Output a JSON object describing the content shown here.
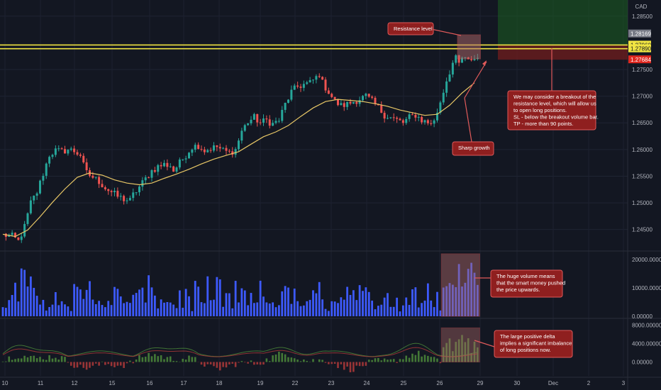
{
  "chart_data": {
    "type": "candlestick",
    "symbol": "CAD",
    "x_tick_labels": [
      "10",
      "11",
      "12",
      "15",
      "16",
      "17",
      "18",
      "19",
      "22",
      "23",
      "24",
      "25",
      "26",
      "29",
      "30",
      "Dec",
      "2",
      "3"
    ],
    "price_axis": {
      "ticks": [
        "1.28500",
        "1.27500",
        "1.27000",
        "1.26500",
        "1.26000",
        "1.25500",
        "1.25000",
        "1.24500"
      ],
      "ylim": [
        1.2415,
        1.2875
      ],
      "price_labels": [
        {
          "text": "1.28169",
          "value": 1.28169,
          "color": "#787b86"
        },
        {
          "text": "1.27960",
          "value": 1.2796,
          "color": "#f0e442"
        },
        {
          "text": "1.27890",
          "value": 1.2789,
          "color": "#f0e442"
        },
        {
          "text": "1.27684",
          "value": 1.27684,
          "color": "#e0271f"
        }
      ]
    },
    "resistance_levels": [
      1.2796,
      1.2789
    ],
    "close_path": [
      [
        0,
        1.244
      ],
      [
        3,
        1.2437
      ],
      [
        5,
        1.2428
      ],
      [
        7,
        1.2455
      ],
      [
        9,
        1.25
      ],
      [
        11,
        1.252
      ],
      [
        13,
        1.2555
      ],
      [
        15,
        1.259
      ],
      [
        17,
        1.2598
      ],
      [
        19,
        1.2596
      ],
      [
        21,
        1.26
      ],
      [
        23,
        1.2597
      ],
      [
        25,
        1.259
      ],
      [
        26,
        1.257
      ],
      [
        27,
        1.2556
      ],
      [
        29,
        1.2548
      ],
      [
        31,
        1.254
      ],
      [
        33,
        1.2528
      ],
      [
        35,
        1.252
      ],
      [
        37,
        1.2512
      ],
      [
        39,
        1.2507
      ],
      [
        41,
        1.2504
      ],
      [
        42,
        1.2515
      ],
      [
        44,
        1.253
      ],
      [
        46,
        1.2545
      ],
      [
        48,
        1.256
      ],
      [
        50,
        1.2568
      ],
      [
        52,
        1.2572
      ],
      [
        54,
        1.257
      ],
      [
        55,
        1.256
      ],
      [
        57,
        1.2575
      ],
      [
        59,
        1.259
      ],
      [
        61,
        1.2605
      ],
      [
        63,
        1.2608
      ],
      [
        65,
        1.2598
      ],
      [
        67,
        1.2602
      ],
      [
        69,
        1.2605
      ],
      [
        71,
        1.2598
      ],
      [
        73,
        1.2594
      ],
      [
        75,
        1.26
      ],
      [
        77,
        1.2635
      ],
      [
        79,
        1.2652
      ],
      [
        81,
        1.266
      ],
      [
        83,
        1.265
      ],
      [
        85,
        1.2655
      ],
      [
        87,
        1.2648
      ],
      [
        89,
        1.2655
      ],
      [
        91,
        1.2685
      ],
      [
        93,
        1.2708
      ],
      [
        95,
        1.2718
      ],
      [
        97,
        1.2722
      ],
      [
        99,
        1.2725
      ],
      [
        101,
        1.2735
      ],
      [
        102,
        1.2742
      ],
      [
        103,
        1.2725
      ],
      [
        105,
        1.2708
      ],
      [
        107,
        1.269
      ],
      [
        109,
        1.2682
      ],
      [
        111,
        1.2685
      ],
      [
        113,
        1.269
      ],
      [
        115,
        1.2695
      ],
      [
        117,
        1.27
      ],
      [
        119,
        1.269
      ],
      [
        121,
        1.2678
      ],
      [
        123,
        1.2665
      ],
      [
        125,
        1.266
      ],
      [
        127,
        1.2655
      ],
      [
        129,
        1.265
      ],
      [
        131,
        1.266
      ],
      [
        133,
        1.2665
      ],
      [
        135,
        1.2655
      ],
      [
        137,
        1.265
      ],
      [
        139,
        1.2652
      ],
      [
        141,
        1.269
      ],
      [
        143,
        1.273
      ],
      [
        145,
        1.2762
      ],
      [
        146,
        1.277
      ],
      [
        147,
        1.276
      ],
      [
        148,
        1.2772
      ],
      [
        149,
        1.2768
      ],
      [
        150,
        1.2765
      ],
      [
        151,
        1.277
      ],
      [
        152,
        1.277
      ],
      [
        153,
        1.2772
      ]
    ],
    "moving_average": [
      [
        0,
        1.2441
      ],
      [
        4,
        1.2437
      ],
      [
        8,
        1.2449
      ],
      [
        12,
        1.2474
      ],
      [
        16,
        1.2501
      ],
      [
        20,
        1.2526
      ],
      [
        24,
        1.2548
      ],
      [
        28,
        1.2556
      ],
      [
        32,
        1.2552
      ],
      [
        36,
        1.2543
      ],
      [
        40,
        1.2537
      ],
      [
        44,
        1.2534
      ],
      [
        48,
        1.2537
      ],
      [
        52,
        1.2546
      ],
      [
        56,
        1.2554
      ],
      [
        60,
        1.2563
      ],
      [
        64,
        1.2573
      ],
      [
        68,
        1.2582
      ],
      [
        72,
        1.2589
      ],
      [
        76,
        1.2596
      ],
      [
        80,
        1.261
      ],
      [
        84,
        1.2624
      ],
      [
        88,
        1.2633
      ],
      [
        92,
        1.2645
      ],
      [
        96,
        1.2662
      ],
      [
        100,
        1.2678
      ],
      [
        104,
        1.269
      ],
      [
        108,
        1.2694
      ],
      [
        112,
        1.2692
      ],
      [
        116,
        1.269
      ],
      [
        120,
        1.2686
      ],
      [
        124,
        1.2681
      ],
      [
        128,
        1.2674
      ],
      [
        132,
        1.2669
      ],
      [
        136,
        1.2664
      ],
      [
        140,
        1.2666
      ],
      [
        144,
        1.2683
      ],
      [
        148,
        1.2706
      ],
      [
        152,
        1.2725
      ]
    ],
    "volume_axis": {
      "ticks": [
        "20000.00000",
        "10000.00000",
        "0.00000"
      ],
      "ylim": [
        0,
        22000
      ],
      "tick_values": [
        20000,
        10000,
        0
      ]
    },
    "volume_highlight_range": [
      142,
      153
    ],
    "delta_axis": {
      "ticks": [
        "8000.00000",
        "4000.00000",
        "0.00000"
      ],
      "ylim": [
        -3000,
        9000
      ],
      "tick_values": [
        8000,
        4000,
        0
      ]
    },
    "delta_highlight_range": [
      142,
      153
    ],
    "annotations": {
      "resistance": "Resistance level",
      "breakout": [
        "We may consider a breakout of the",
        "resistance level, which will allow us",
        "to open long positions.",
        "SL - below the breakout volume bar.",
        "TP - more than 90 points."
      ],
      "sharp_growth": "Sharp growth",
      "volume": [
        "The huge volume means",
        "that the smart money pushed",
        "the price upwards."
      ],
      "delta": [
        "The large positive delta",
        "implies a significant imbalance",
        "of long positions now."
      ]
    },
    "colors": {
      "bg": "#131722",
      "up": "#26a69a",
      "down": "#ef5350",
      "ma": "#e8c766",
      "resistance": "#f0e442",
      "volume": "#3d5afe",
      "delta_up": "#4c8a3a",
      "delta_down": "#b23a3a",
      "callout_fill": "#8f1f1f",
      "callout_border": "#e05a5a"
    }
  }
}
